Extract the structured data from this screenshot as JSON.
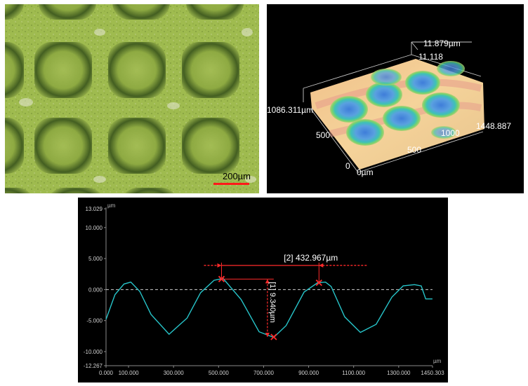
{
  "micrograph": {
    "scale_bar_label": "200µm",
    "scale_bar_color": "#ff1a1a"
  },
  "view3d": {
    "z_top_label": "11.879µm",
    "z_second_label": "11.118",
    "y_extent_label": "1086.311µm",
    "x_extent_label": "1448.887",
    "x_tick_1000": "1000",
    "x_tick_500": "500",
    "y_tick_500": "500",
    "y_tick_0": "0",
    "origin_label": "0µm"
  },
  "profile": {
    "unit_label_y": "µm",
    "unit_label_x": "µm",
    "height_annotation": "[1] 9.340µm",
    "pitch_annotation": "[2] 432.967µm",
    "line_color": "#27c4c9",
    "marker_color": "#ff2a2a"
  },
  "chart_data": {
    "type": "line",
    "title": "",
    "xlabel": "µm",
    "ylabel": "µm",
    "xlim": [
      0.0,
      1450.303
    ],
    "ylim": [
      -12.267,
      13.029
    ],
    "x_ticks": [
      "0.000",
      "100.000",
      "300.000",
      "500.000",
      "700.000",
      "900.000",
      "1100.000",
      "1300.000",
      "1450.303"
    ],
    "y_ticks": [
      "13.029",
      "10.000",
      "5.000",
      "0.000",
      "-5.000",
      "-10.000",
      "-12.267"
    ],
    "series": [
      {
        "x": [
          0,
          40,
          80,
          110,
          150,
          200,
          280,
          360,
          420,
          480,
          520,
          600,
          680,
          745,
          800,
          880,
          940,
          975,
          1000,
          1060,
          1130,
          1200,
          1270,
          1320,
          1370,
          1400,
          1420,
          1450
        ],
        "y": [
          -4.8,
          -0.8,
          0.9,
          1.2,
          -0.3,
          -4.0,
          -7.2,
          -4.6,
          -0.5,
          1.5,
          1.8,
          -1.6,
          -6.8,
          -7.7,
          -5.8,
          -0.4,
          1.1,
          1.2,
          0.5,
          -4.4,
          -6.9,
          -5.6,
          -1.2,
          0.6,
          0.8,
          0.6,
          -1.5,
          -1.5
        ]
      }
    ],
    "reference_line_y": 0.0,
    "markers": [
      {
        "x": 513.0,
        "y": 1.7
      },
      {
        "x": 745.0,
        "y": -7.64
      },
      {
        "x": 946.0,
        "y": 1.1
      }
    ],
    "height_measurement": 9.34,
    "pitch_measurement": 432.967
  }
}
